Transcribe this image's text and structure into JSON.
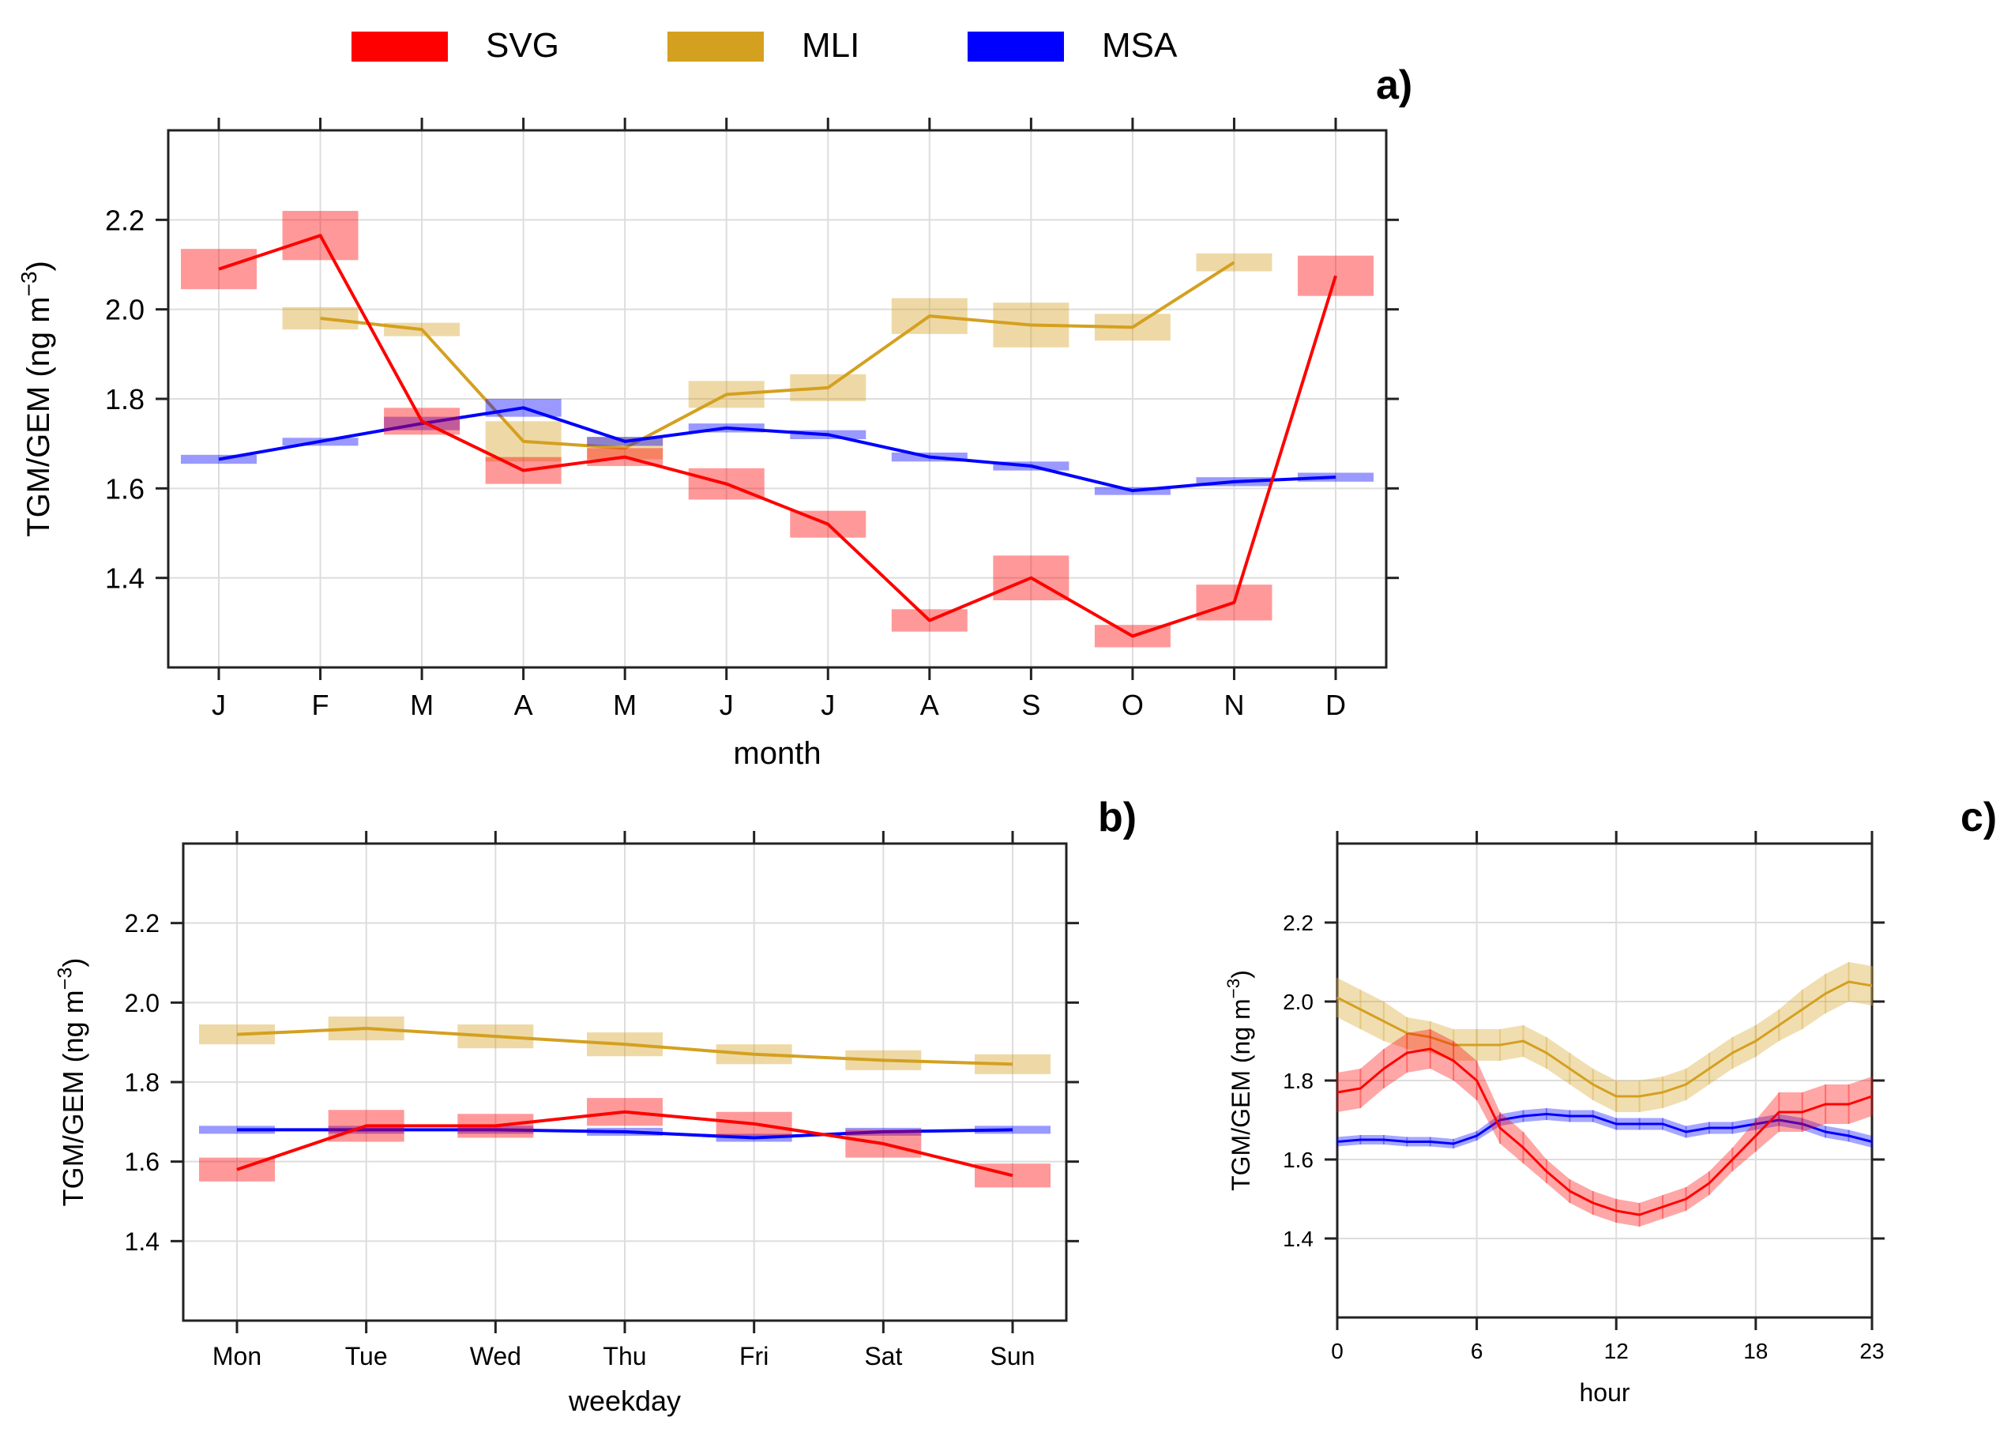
{
  "legend": [
    {
      "name": "SVG",
      "color": "#ff0000"
    },
    {
      "name": "MLI",
      "color": "#d4a020"
    },
    {
      "name": "MSA",
      "color": "#0000ff"
    }
  ],
  "chart_data": [
    {
      "panel_label": "a)",
      "type": "line",
      "xlabel": "month",
      "ylabel": "TGM/GEM (ng m",
      "ylabel_exp": "−3",
      "ylabel_tail": ")",
      "ylim": [
        1.2,
        2.4
      ],
      "yticks": [
        1.4,
        1.6,
        1.8,
        2.0,
        2.2
      ],
      "ytick_labels": [
        "1.4",
        "1.6",
        "1.8",
        "2.0",
        "2.2"
      ],
      "categories": [
        "J",
        "F",
        "M",
        "A",
        "M",
        "J",
        "J",
        "A",
        "S",
        "O",
        "N",
        "D"
      ],
      "series": [
        {
          "name": "SVG",
          "values": [
            2.09,
            2.165,
            1.75,
            1.64,
            1.67,
            1.61,
            1.52,
            1.305,
            1.4,
            1.27,
            1.345,
            2.075
          ],
          "band": [
            0.045,
            0.055,
            0.03,
            0.03,
            0.02,
            0.035,
            0.03,
            0.025,
            0.05,
            0.025,
            0.04,
            0.045
          ]
        },
        {
          "name": "MLI",
          "values": [
            null,
            1.98,
            1.955,
            1.705,
            1.69,
            1.81,
            1.825,
            1.985,
            1.965,
            1.96,
            2.105,
            null
          ],
          "band": [
            0,
            0.025,
            0.015,
            0.045,
            0.025,
            0.03,
            0.03,
            0.04,
            0.05,
            0.03,
            0.02,
            0
          ]
        },
        {
          "name": "MSA",
          "values": [
            1.665,
            1.705,
            1.745,
            1.78,
            1.705,
            1.735,
            1.72,
            1.67,
            1.65,
            1.595,
            1.615,
            1.625
          ],
          "band": [
            0.01,
            0.0,
            0.015,
            0.02,
            0.01,
            0.01,
            0.01,
            0.01,
            0.01,
            0.008,
            0.01,
            0.01
          ]
        }
      ]
    },
    {
      "panel_label": "b)",
      "type": "line",
      "xlabel": "weekday",
      "ylabel": "TGM/GEM (ng m",
      "ylabel_exp": "−3",
      "ylabel_tail": ")",
      "ylim": [
        1.2,
        2.4
      ],
      "yticks": [
        1.4,
        1.6,
        1.8,
        2.0,
        2.2
      ],
      "ytick_labels": [
        "1.4",
        "1.6",
        "1.8",
        "2.0",
        "2.2"
      ],
      "categories": [
        "Mon",
        "Tue",
        "Wed",
        "Thu",
        "Fri",
        "Sat",
        "Sun"
      ],
      "series": [
        {
          "name": "SVG",
          "values": [
            1.58,
            1.69,
            1.69,
            1.725,
            1.695,
            1.645,
            1.565
          ],
          "band": [
            0.03,
            0.04,
            0.03,
            0.035,
            0.03,
            0.035,
            0.03
          ]
        },
        {
          "name": "MLI",
          "values": [
            1.92,
            1.935,
            1.915,
            1.895,
            1.87,
            1.855,
            1.845
          ],
          "band": [
            0.025,
            0.03,
            0.03,
            0.03,
            0.025,
            0.025,
            0.025
          ]
        },
        {
          "name": "MSA",
          "values": [
            1.68,
            1.68,
            1.68,
            1.675,
            1.66,
            1.675,
            1.68
          ],
          "band": [
            0.01,
            0.01,
            0.01,
            0.01,
            0.01,
            0.01,
            0.01
          ]
        }
      ]
    },
    {
      "panel_label": "c)",
      "type": "line",
      "xlabel": "hour",
      "ylabel": "TGM/GEM (ng m",
      "ylabel_exp": "−3",
      "ylabel_tail": ")",
      "ylim": [
        1.2,
        2.4
      ],
      "xlim": [
        0,
        23
      ],
      "yticks": [
        1.4,
        1.6,
        1.8,
        2.0,
        2.2
      ],
      "ytick_labels": [
        "1.4",
        "1.6",
        "1.8",
        "2.0",
        "2.2"
      ],
      "xticks": [
        0,
        6,
        12,
        18,
        23
      ],
      "xtick_labels": [
        "0",
        "6",
        "12",
        "18",
        "23"
      ],
      "x": [
        0,
        1,
        2,
        3,
        4,
        5,
        6,
        7,
        8,
        9,
        10,
        11,
        12,
        13,
        14,
        15,
        16,
        17,
        18,
        19,
        20,
        21,
        22,
        23
      ],
      "series": [
        {
          "name": "SVG",
          "values": [
            1.77,
            1.78,
            1.83,
            1.87,
            1.88,
            1.85,
            1.8,
            1.68,
            1.63,
            1.57,
            1.52,
            1.49,
            1.47,
            1.46,
            1.48,
            1.5,
            1.54,
            1.6,
            1.66,
            1.72,
            1.72,
            1.74,
            1.74,
            1.76
          ],
          "band": [
            0.05,
            0.05,
            0.05,
            0.05,
            0.05,
            0.05,
            0.05,
            0.04,
            0.04,
            0.03,
            0.03,
            0.03,
            0.03,
            0.03,
            0.03,
            0.03,
            0.03,
            0.03,
            0.04,
            0.05,
            0.05,
            0.05,
            0.05,
            0.05
          ]
        },
        {
          "name": "MLI",
          "values": [
            2.01,
            1.98,
            1.95,
            1.92,
            1.91,
            1.89,
            1.89,
            1.89,
            1.9,
            1.87,
            1.83,
            1.79,
            1.76,
            1.76,
            1.77,
            1.79,
            1.83,
            1.87,
            1.9,
            1.94,
            1.98,
            2.02,
            2.05,
            2.04
          ],
          "band": [
            0.05,
            0.05,
            0.05,
            0.04,
            0.04,
            0.04,
            0.04,
            0.04,
            0.04,
            0.04,
            0.04,
            0.04,
            0.04,
            0.04,
            0.04,
            0.04,
            0.04,
            0.04,
            0.04,
            0.04,
            0.05,
            0.05,
            0.05,
            0.05
          ]
        },
        {
          "name": "MSA",
          "values": [
            1.645,
            1.65,
            1.65,
            1.645,
            1.645,
            1.64,
            1.66,
            1.7,
            1.71,
            1.715,
            1.71,
            1.71,
            1.69,
            1.69,
            1.69,
            1.67,
            1.68,
            1.68,
            1.69,
            1.7,
            1.69,
            1.67,
            1.66,
            1.645
          ],
          "band": [
            0.012,
            0.012,
            0.012,
            0.012,
            0.012,
            0.012,
            0.012,
            0.015,
            0.015,
            0.015,
            0.015,
            0.015,
            0.015,
            0.015,
            0.015,
            0.015,
            0.015,
            0.015,
            0.015,
            0.015,
            0.015,
            0.015,
            0.015,
            0.015
          ]
        }
      ]
    }
  ]
}
